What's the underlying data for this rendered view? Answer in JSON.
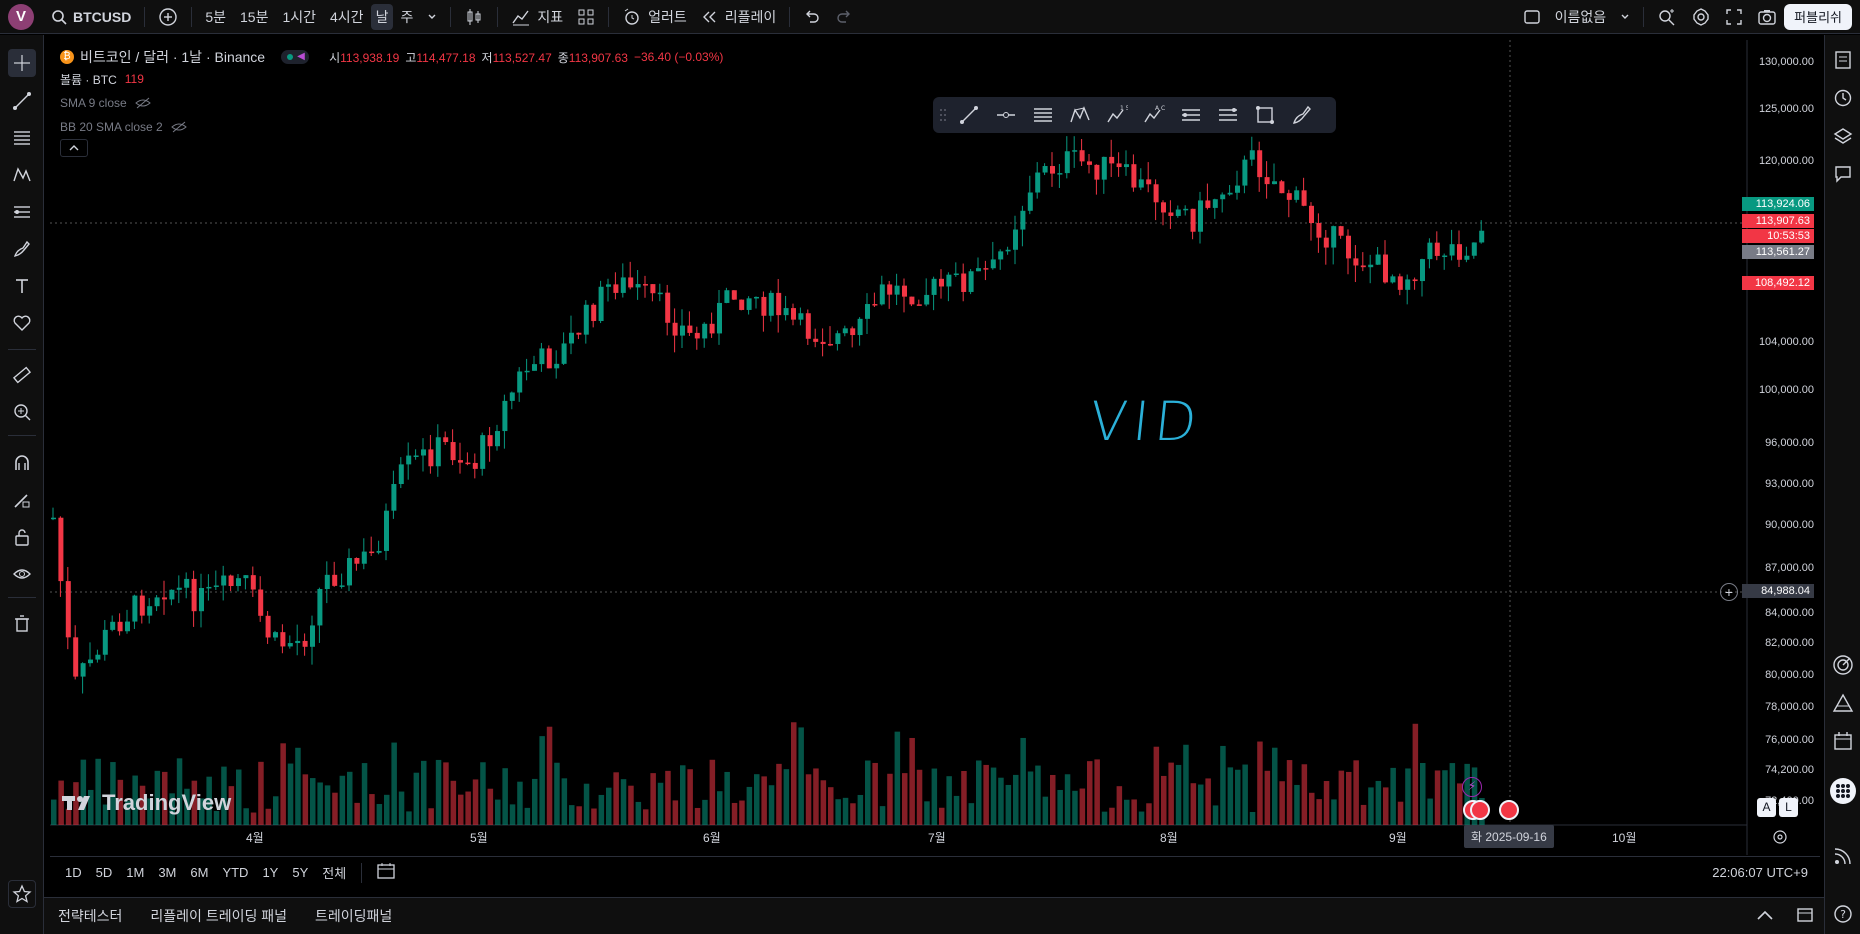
{
  "topbar": {
    "avatar_letter": "V",
    "symbol": "BTCUSD",
    "intervals": [
      "5분",
      "15분",
      "1시간",
      "4시간",
      "날",
      "주"
    ],
    "active_interval": "날",
    "indicators_label": "지표",
    "alert_label": "얼러트",
    "replay_label": "리플레이",
    "layout_name": "이름없음",
    "publish_label": "퍼블리쉬"
  },
  "legend": {
    "title": "비트코인 / 달러 · 1날 · Binance",
    "open_label": "시",
    "open": "113,938.19",
    "high_label": "고",
    "high": "114,477.18",
    "low_label": "저",
    "low": "113,527.47",
    "close_label": "종",
    "close": "113,907.63",
    "change": "−36.40 (−0.03%)",
    "volume_label": "볼륨 · BTC",
    "volume_value": "119",
    "sma_label": "SMA 9 close",
    "bb_label": "BB 20 SMA close 2"
  },
  "price_scale": [
    "130,000.00",
    "125,000.00",
    "120,000.00",
    "116,000.00",
    "108,000.00",
    "104,000.00",
    "100,000.00",
    "96,000.00",
    "93,000.00",
    "90,000.00",
    "87,000.00",
    "84,000.00",
    "82,000.00",
    "80,000.00",
    "78,000.00",
    "76,000.00",
    "74,200.00",
    "72,400.00"
  ],
  "price_tags": {
    "upper_band": "113,924.06",
    "last_price": "113,907.63",
    "countdown": "10:53:53",
    "lower": "113,561.27",
    "level": "108,492.12",
    "crosshair": "84,988.04"
  },
  "colors": {
    "up": "#089981",
    "down": "#f23645",
    "tag_gray": "#787b86",
    "drawing": "#2bb0d8"
  },
  "time_axis": [
    "4월",
    "5월",
    "6월",
    "7월",
    "8월",
    "9월",
    "10월"
  ],
  "crosshair_date": "화 2025-09-16",
  "drawing_text": "VID",
  "logo_text": "TradingView",
  "scale_toggles": {
    "auto": "A",
    "log": "L"
  },
  "range_buttons": [
    "1D",
    "5D",
    "1M",
    "3M",
    "6M",
    "YTD",
    "1Y",
    "5Y",
    "전체"
  ],
  "clock": "22:06:07 UTC+9",
  "bottom_tabs": [
    "전략테스터",
    "리플레이 트레이딩 패널",
    "트레이딩패널"
  ]
}
